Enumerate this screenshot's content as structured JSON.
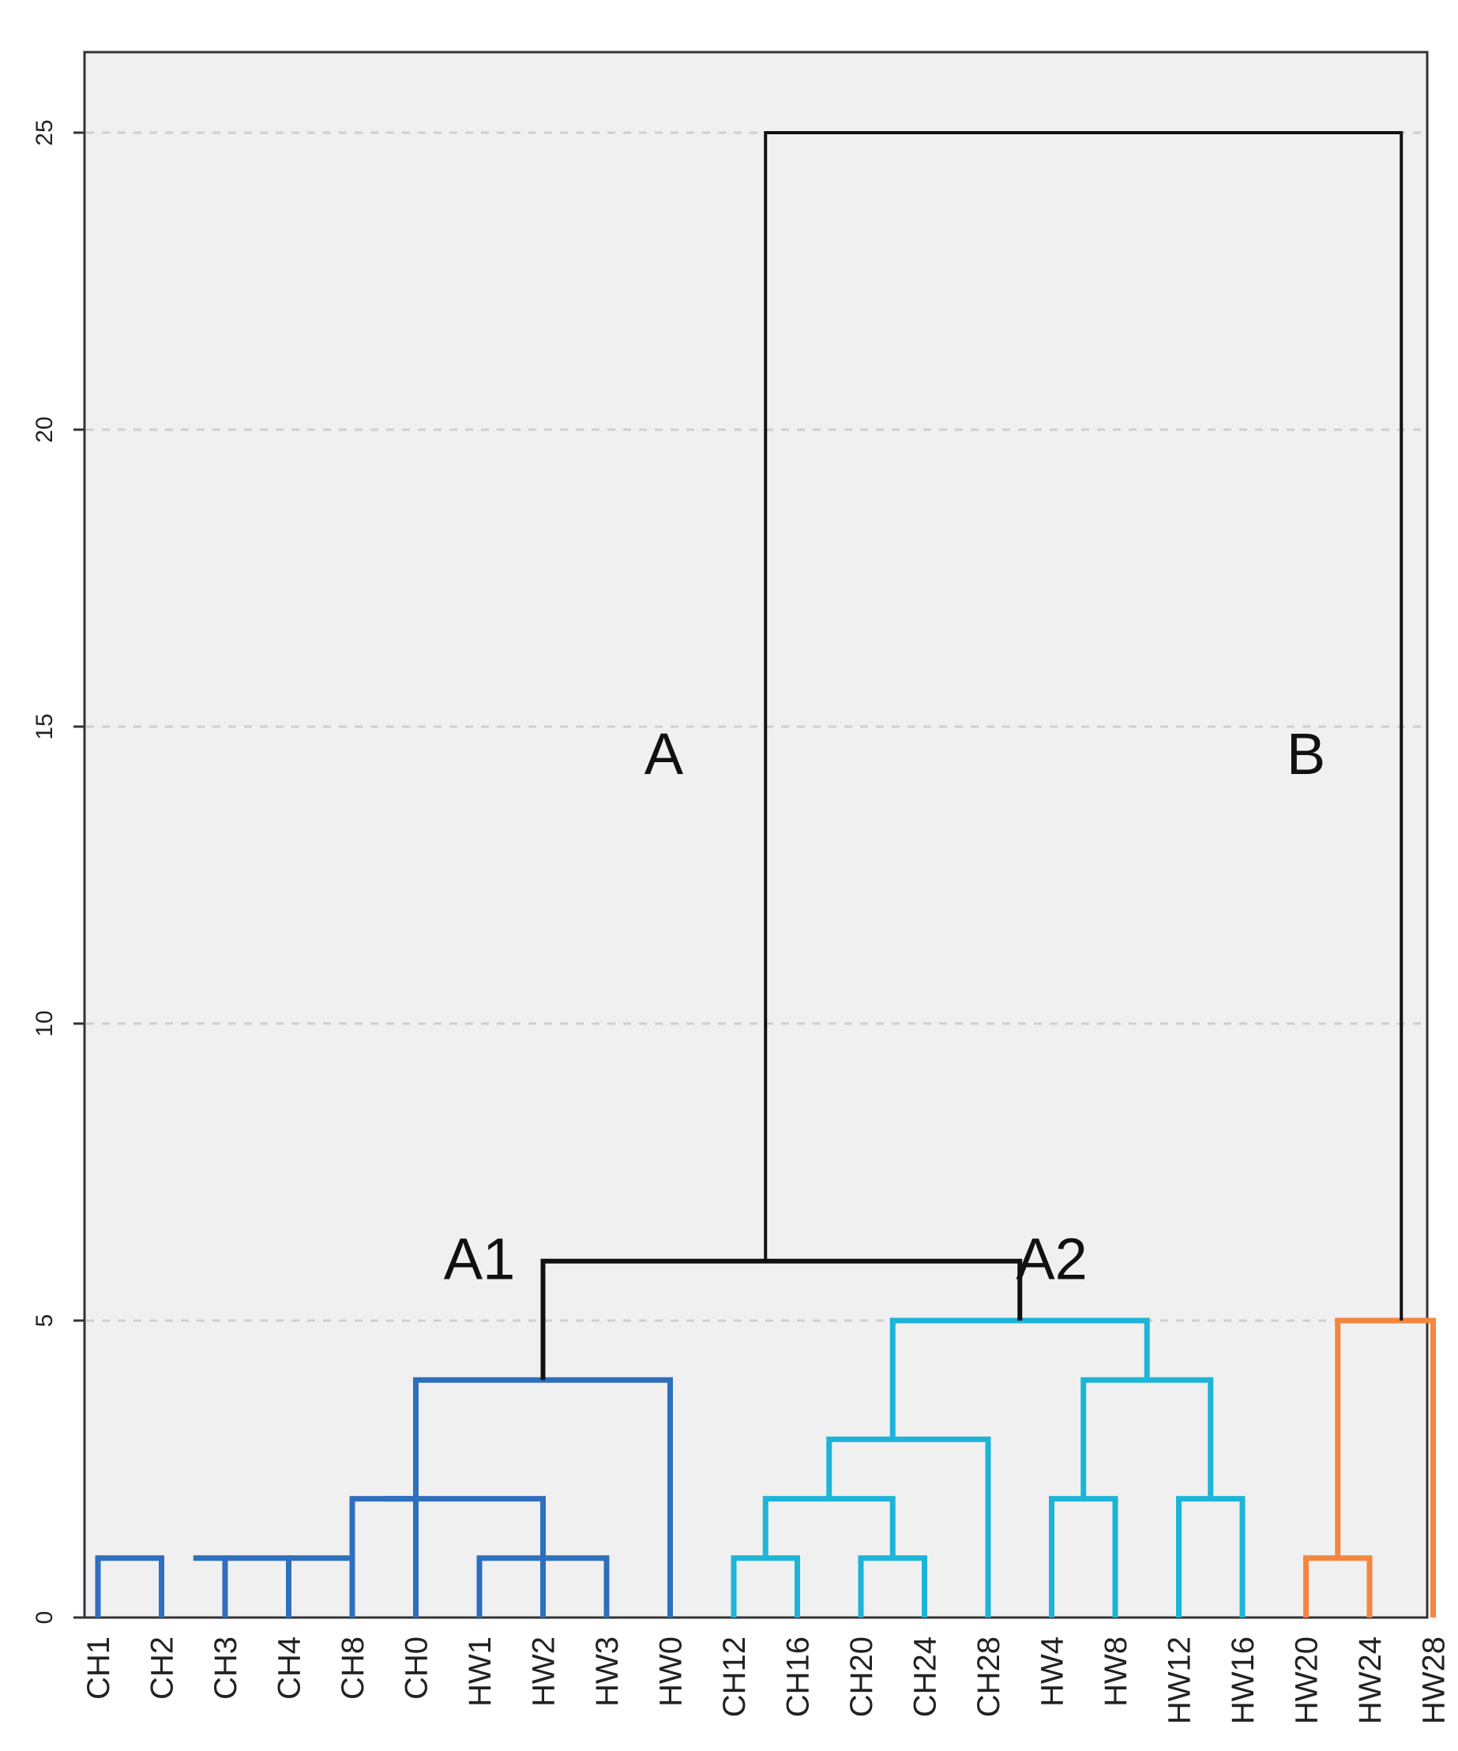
{
  "chart_data": {
    "type": "dendrogram",
    "ylim": [
      0,
      26.3
    ],
    "yticks": [
      0,
      5,
      10,
      15,
      20,
      25
    ],
    "grid": true,
    "leaves": [
      "CH1",
      "CH2",
      "CH3",
      "CH4",
      "CH8",
      "CH0",
      "HW1",
      "HW2",
      "HW3",
      "HW0",
      "CH12",
      "CH16",
      "CH20",
      "CH24",
      "CH28",
      "HW4",
      "HW8",
      "HW12",
      "HW16",
      "HW20",
      "HW24",
      "HW28"
    ],
    "colors": {
      "A1": "#2e6fbe",
      "A2": "#1db4d8",
      "B": "#f5853f",
      "root": "#111111"
    },
    "merges": [
      {
        "id": "m1",
        "left": "CH1",
        "right": "CH2",
        "x": 1.5,
        "height": 1,
        "group": "A1"
      },
      {
        "id": "m2",
        "left": "m1",
        "right": "CH3",
        "x": 2,
        "height": 1,
        "group": "A1"
      },
      {
        "id": "m3",
        "left": "m2",
        "right": "CH4",
        "x": 3,
        "height": 1,
        "group": "A1"
      },
      {
        "id": "m4",
        "left": "m3",
        "right": "CH8",
        "x": 4,
        "height": 1,
        "group": "A1"
      },
      {
        "id": "m5",
        "left": "HW1",
        "right": "HW3",
        "x": 7,
        "height": 1,
        "group": "A1"
      },
      {
        "id": "m6",
        "left": "m5",
        "right": "HW2",
        "x": 7,
        "height": 1,
        "group": "A1"
      },
      {
        "id": "m7",
        "left": "m4",
        "right": "m6",
        "x": 4.5,
        "height": 2,
        "group": "A1"
      },
      {
        "id": "m8",
        "left": "m7",
        "right": "CH0",
        "x": 5,
        "height": 2,
        "group": "A1"
      },
      {
        "id": "m9",
        "left": "m8",
        "right": "HW0",
        "x": 7,
        "height": 4,
        "group": "A1"
      },
      {
        "id": "m10",
        "left": "CH12",
        "right": "CH16",
        "x": 10.5,
        "height": 1,
        "group": "A2"
      },
      {
        "id": "m11",
        "left": "CH20",
        "right": "CH24",
        "x": 12.5,
        "height": 1,
        "group": "A2"
      },
      {
        "id": "m12",
        "left": "m10",
        "right": "m11",
        "x": 11.5,
        "height": 2,
        "group": "A2"
      },
      {
        "id": "m13",
        "left": "m12",
        "right": "CH28",
        "x": 12.5,
        "height": 3,
        "group": "A2"
      },
      {
        "id": "m14",
        "left": "HW4",
        "right": "HW8",
        "x": 15.5,
        "height": 2,
        "group": "A2"
      },
      {
        "id": "m15",
        "left": "HW12",
        "right": "HW16",
        "x": 17.5,
        "height": 2,
        "group": "A2"
      },
      {
        "id": "m16",
        "left": "m14",
        "right": "m15",
        "x": 16.5,
        "height": 4,
        "group": "A2"
      },
      {
        "id": "m17",
        "left": "m13",
        "right": "m16",
        "x": 14.5,
        "height": 5,
        "group": "A2"
      },
      {
        "id": "m18",
        "left": "m9",
        "right": "m17",
        "x": 10.5,
        "height": 6,
        "group": "root"
      },
      {
        "id": "m19",
        "left": "HW20",
        "right": "HW24",
        "x": 19.5,
        "height": 1,
        "group": "B"
      },
      {
        "id": "m20",
        "left": "m19",
        "right": "HW28",
        "x": 20.5,
        "height": 5,
        "group": "B"
      },
      {
        "id": "m21",
        "left": "m18",
        "right": "m20",
        "x": 15,
        "height": 25,
        "group": "root"
      }
    ],
    "annotations": [
      {
        "text": "A",
        "x": 8.9,
        "y": 14.2
      },
      {
        "text": "B",
        "x": 19.0,
        "y": 14.2
      },
      {
        "text": "A1",
        "x": 6.0,
        "y": 5.7
      },
      {
        "text": "A2",
        "x": 15.0,
        "y": 5.7
      }
    ]
  }
}
